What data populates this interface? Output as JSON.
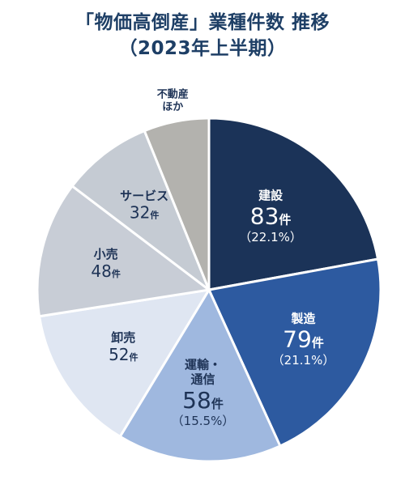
{
  "chart_data": {
    "type": "pie",
    "title": "「物価高倒産」業種件数 推移",
    "subtitle": "（2023年上半期）",
    "unit": "件",
    "slices": [
      {
        "name": "建設",
        "value": 83,
        "percent": "（22.1%）",
        "color": "#1b3358"
      },
      {
        "name": "製造",
        "value": 79,
        "percent": "（21.1%）",
        "color": "#2d5aa0"
      },
      {
        "name": "運輸・\n通信",
        "value": 58,
        "percent": "（15.5%）",
        "color": "#9fb8df"
      },
      {
        "name": "卸売",
        "value": 52,
        "color": "#dfe6f2"
      },
      {
        "name": "小売",
        "value": 48,
        "color": "#c8cdd6"
      },
      {
        "name": "サービス",
        "value": 32,
        "color": "#c5cbd3"
      },
      {
        "name": "不動産\nほか",
        "value": 23,
        "color": "#b3b2ae"
      }
    ]
  }
}
